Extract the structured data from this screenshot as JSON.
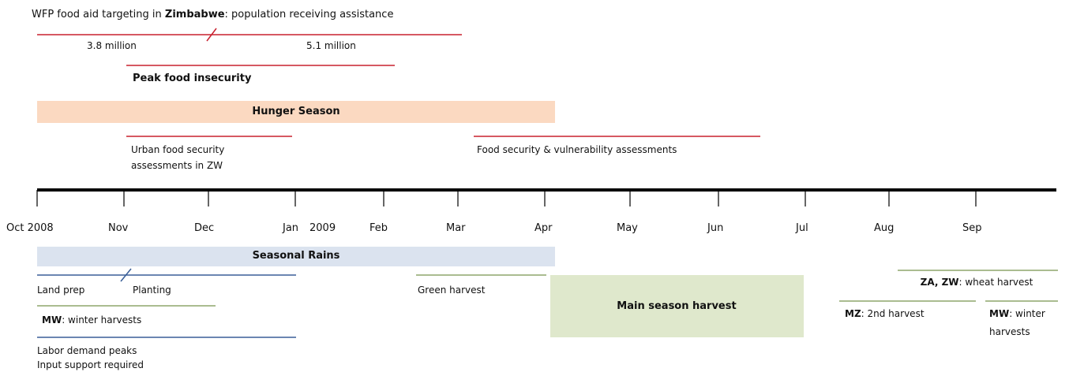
{
  "title": {
    "before": "WFP food aid targeting in ",
    "bold": "Zimbabwe",
    "after": ": population receiving assistance"
  },
  "aid_levels": [
    "3.8 million",
    "5.1 million"
  ],
  "peak": "Peak food insecurity",
  "hunger_season": "Hunger Season",
  "urban_assessment": [
    "Urban food security",
    "assessments in ZW"
  ],
  "vulnerability_assessment": "Food security & vulnerability assessments",
  "axis_labels": [
    "Oct 2008",
    "Nov",
    "Dec",
    "Jan",
    "2009",
    "Feb",
    "Mar",
    "Apr",
    "May",
    "Jun",
    "Jul",
    "Aug",
    "Sep"
  ],
  "seasonal_rains": "Seasonal Rains",
  "land_prep": "Land prep",
  "planting": "Planting",
  "mw_winter": {
    "bold": "MW",
    "rest": ": winter harvests"
  },
  "labor": [
    "Labor demand peaks",
    "Input support required"
  ],
  "green_harvest": "Green harvest",
  "main_harvest": "Main season harvest",
  "wheat": {
    "bold": "ZA, ZW",
    "rest": ": wheat harvest"
  },
  "mz_harvest": {
    "bold": "MZ",
    "rest": ": 2nd harvest"
  },
  "mw_winter_2": {
    "bold": "MW",
    "rest": ": winter",
    "line2": "harvests"
  }
}
